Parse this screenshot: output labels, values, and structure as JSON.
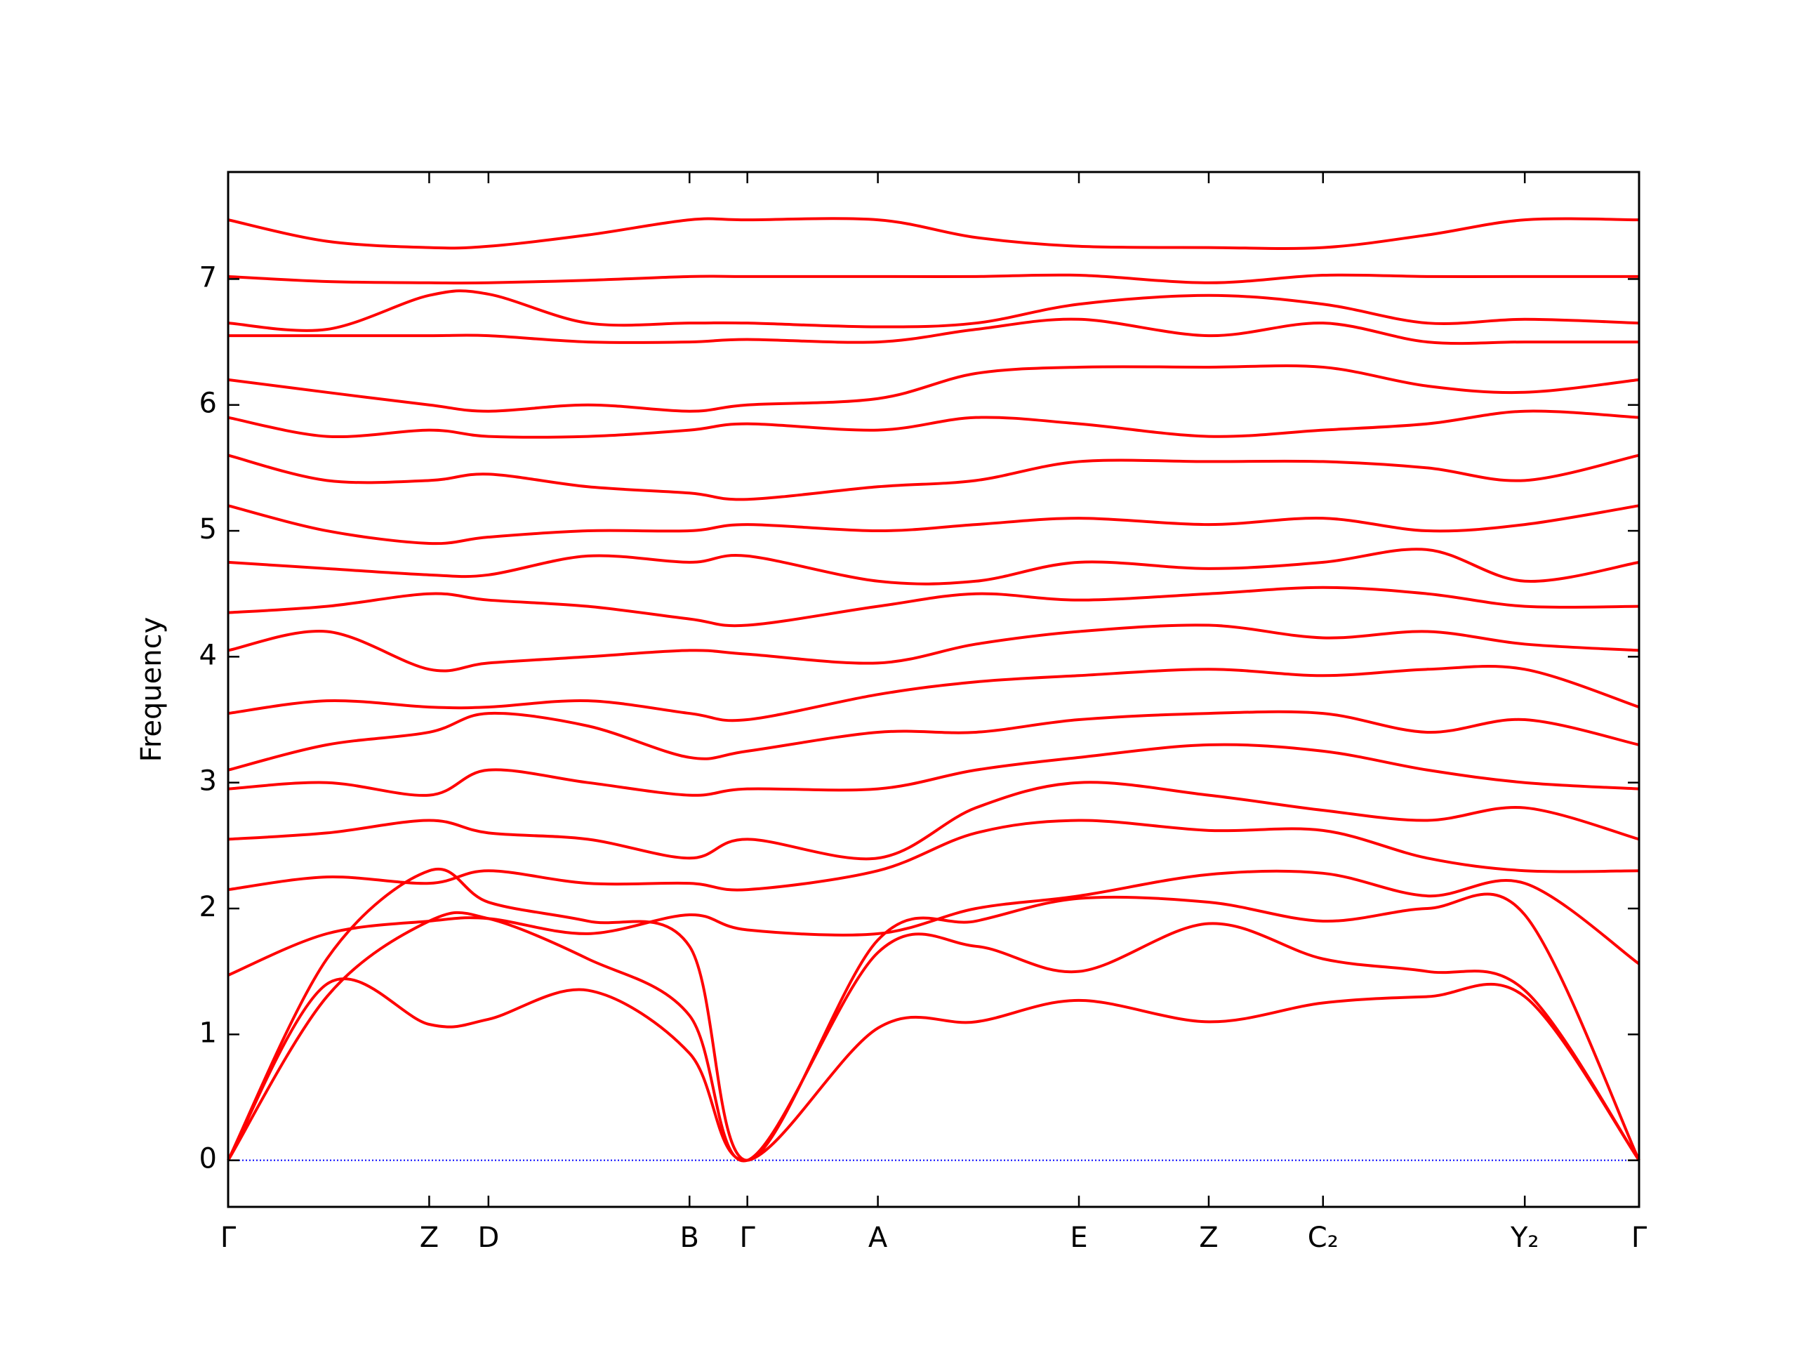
{
  "chart_data": {
    "type": "line",
    "y_label": "Frequency",
    "color": "#ff0000",
    "zero_line": {
      "value": 0,
      "color": "#0000ff"
    },
    "xlim": [
      0,
      1
    ],
    "ylim": [
      -0.37,
      7.85
    ],
    "xticks": [
      {
        "value": 0,
        "label": "Γ"
      },
      {
        "value": 0.1425,
        "label": "Z"
      },
      {
        "value": 0.1845,
        "label": "D"
      },
      {
        "value": 0.327,
        "label": "B"
      },
      {
        "value": 0.368,
        "label": "Γ"
      },
      {
        "value": 0.4605,
        "label": "A"
      },
      {
        "value": 0.603,
        "label": "E"
      },
      {
        "value": 0.695,
        "label": "Z"
      },
      {
        "value": 0.776,
        "label": "C₂"
      },
      {
        "value": 0.919,
        "label": "Y₂"
      },
      {
        "value": 1,
        "label": "Γ"
      }
    ],
    "yticks": [
      0,
      1,
      2,
      3,
      4,
      5,
      6,
      7
    ],
    "x": [
      0,
      0.07,
      0.1425,
      0.1845,
      0.255,
      0.327,
      0.368,
      0.4605,
      0.53,
      0.603,
      0.695,
      0.776,
      0.85,
      0.919,
      1
    ],
    "series": [
      {
        "values": [
          0,
          1.4,
          1.08,
          1.12,
          1.35,
          0.85,
          0,
          1.05,
          1.1,
          1.27,
          1.1,
          1.25,
          1.3,
          1.3,
          0
        ]
      },
      {
        "values": [
          0,
          1.3,
          1.9,
          1.92,
          1.6,
          1.15,
          0,
          1.65,
          1.7,
          1.5,
          1.88,
          1.6,
          1.5,
          1.35,
          0
        ]
      },
      {
        "values": [
          0,
          1.6,
          2.3,
          2.05,
          1.9,
          1.7,
          0,
          1.75,
          1.9,
          2.08,
          2.05,
          1.9,
          2.0,
          1.95,
          0
        ]
      },
      {
        "values": [
          1.47,
          1.8,
          1.9,
          1.92,
          1.8,
          1.95,
          1.83,
          1.8,
          2.0,
          2.1,
          2.27,
          2.28,
          2.1,
          2.2,
          1.56
        ]
      },
      {
        "values": [
          2.15,
          2.25,
          2.2,
          2.3,
          2.2,
          2.2,
          2.15,
          2.3,
          2.6,
          2.7,
          2.62,
          2.62,
          2.4,
          2.3,
          2.3
        ]
      },
      {
        "values": [
          2.55,
          2.6,
          2.7,
          2.6,
          2.55,
          2.4,
          2.55,
          2.4,
          2.8,
          3.0,
          2.9,
          2.78,
          2.7,
          2.8,
          2.55
        ]
      },
      {
        "values": [
          2.95,
          3.0,
          2.9,
          3.1,
          3.0,
          2.9,
          2.95,
          2.95,
          3.1,
          3.2,
          3.3,
          3.25,
          3.1,
          3.0,
          2.95
        ]
      },
      {
        "values": [
          3.1,
          3.3,
          3.4,
          3.55,
          3.45,
          3.2,
          3.25,
          3.4,
          3.4,
          3.5,
          3.55,
          3.55,
          3.4,
          3.5,
          3.3
        ]
      },
      {
        "values": [
          3.55,
          3.65,
          3.6,
          3.6,
          3.65,
          3.55,
          3.5,
          3.7,
          3.8,
          3.85,
          3.9,
          3.85,
          3.9,
          3.9,
          3.6
        ]
      },
      {
        "values": [
          4.05,
          4.2,
          3.9,
          3.95,
          4.0,
          4.05,
          4.02,
          3.95,
          4.1,
          4.2,
          4.25,
          4.15,
          4.2,
          4.1,
          4.05
        ]
      },
      {
        "values": [
          4.35,
          4.4,
          4.5,
          4.45,
          4.4,
          4.3,
          4.25,
          4.4,
          4.5,
          4.45,
          4.5,
          4.55,
          4.5,
          4.4,
          4.4
        ]
      },
      {
        "values": [
          4.75,
          4.7,
          4.65,
          4.65,
          4.8,
          4.75,
          4.8,
          4.6,
          4.6,
          4.75,
          4.7,
          4.75,
          4.85,
          4.6,
          4.75
        ]
      },
      {
        "values": [
          5.2,
          5.0,
          4.9,
          4.95,
          5.0,
          5.0,
          5.05,
          5.0,
          5.05,
          5.1,
          5.05,
          5.1,
          5.0,
          5.05,
          5.2
        ]
      },
      {
        "values": [
          5.6,
          5.4,
          5.4,
          5.45,
          5.35,
          5.3,
          5.25,
          5.35,
          5.4,
          5.55,
          5.55,
          5.55,
          5.5,
          5.4,
          5.6
        ]
      },
      {
        "values": [
          5.9,
          5.75,
          5.8,
          5.75,
          5.75,
          5.8,
          5.85,
          5.8,
          5.9,
          5.85,
          5.75,
          5.8,
          5.85,
          5.95,
          5.9
        ]
      },
      {
        "values": [
          6.2,
          6.1,
          6.0,
          5.95,
          6.0,
          5.95,
          6.0,
          6.05,
          6.25,
          6.3,
          6.3,
          6.3,
          6.15,
          6.1,
          6.2
        ]
      },
      {
        "values": [
          6.55,
          6.55,
          6.55,
          6.55,
          6.5,
          6.5,
          6.52,
          6.5,
          6.6,
          6.68,
          6.55,
          6.65,
          6.5,
          6.5,
          6.5
        ]
      },
      {
        "values": [
          6.65,
          6.6,
          6.87,
          6.88,
          6.65,
          6.65,
          6.65,
          6.62,
          6.65,
          6.8,
          6.87,
          6.8,
          6.65,
          6.68,
          6.65
        ]
      },
      {
        "values": [
          7.02,
          6.98,
          6.97,
          6.97,
          6.99,
          7.02,
          7.02,
          7.02,
          7.02,
          7.03,
          6.97,
          7.03,
          7.02,
          7.02,
          7.02
        ]
      },
      {
        "values": [
          7.47,
          7.3,
          7.25,
          7.26,
          7.35,
          7.47,
          7.47,
          7.47,
          7.33,
          7.26,
          7.25,
          7.25,
          7.35,
          7.47,
          7.47
        ]
      }
    ]
  }
}
